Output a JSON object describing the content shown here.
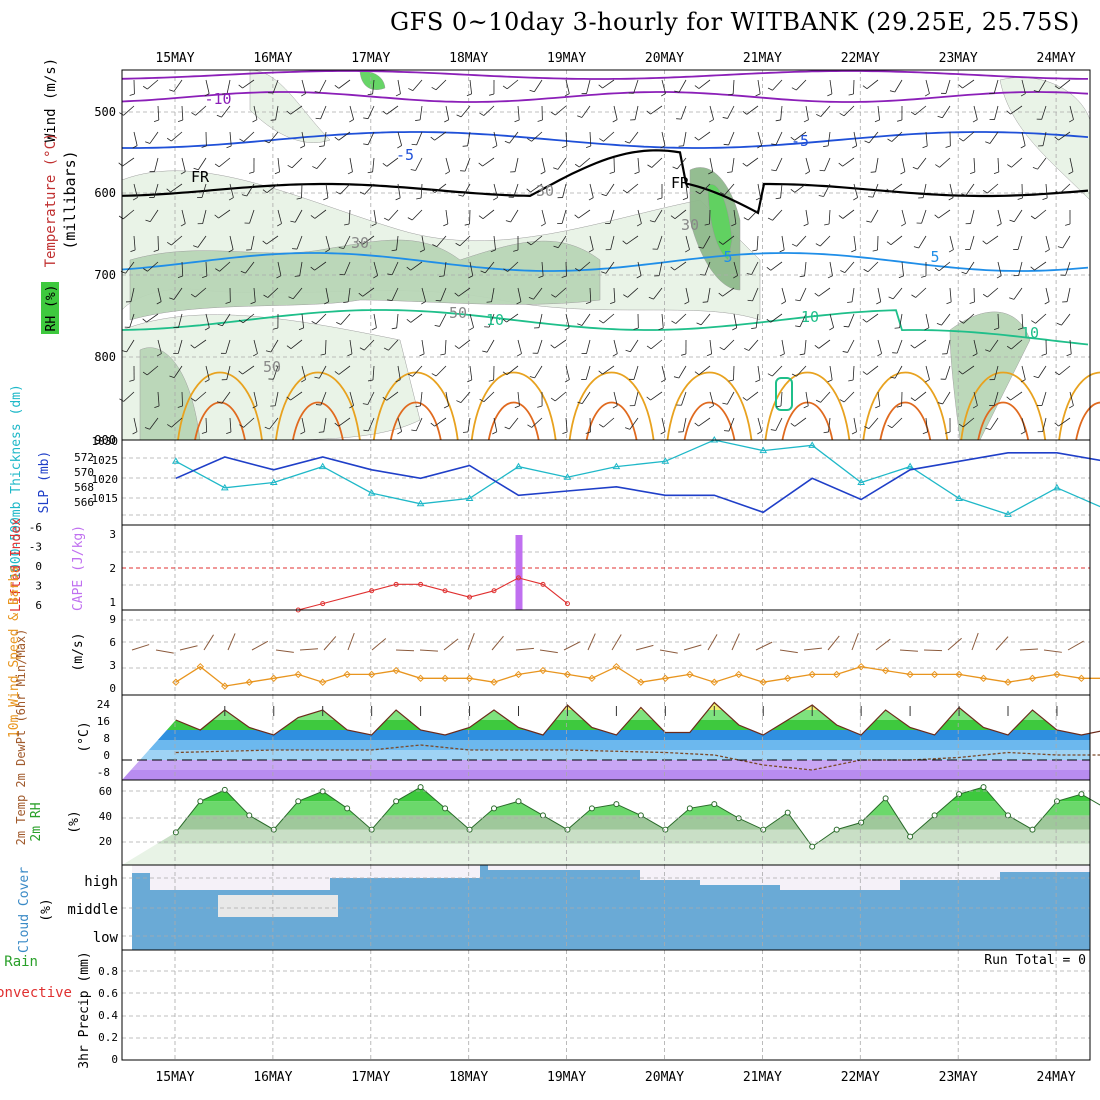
{
  "title": "GFS 0~10day 3-hourly for WITBANK (29.25E, 25.75S)",
  "days": [
    "15MAY",
    "16MAY",
    "17MAY",
    "18MAY",
    "19MAY",
    "20MAY",
    "21MAY",
    "22MAY",
    "23MAY",
    "24MAY"
  ],
  "colors": {
    "rh1": "#e8f3e6",
    "rh2": "#b9d6b7",
    "rh3": "#8fba8c",
    "rh4": "#5fd35f",
    "temp_m10": "#8b1fb8",
    "temp_m5": "#1f50d8",
    "temp_fr": "#000000",
    "temp_5": "#1f8ee8",
    "temp_10": "#1fbf8a",
    "temp_15": "#e8a21f",
    "temp_20": "#e06a1f",
    "thickness": "#1fb8c8",
    "slp": "#1f3fc8",
    "cape": "#c070f0",
    "li": "#e03030",
    "wind_speed": "#e8951f",
    "barb": "#8b5a3c",
    "cloud": "#6aaad6",
    "clear": "#f5f1f8"
  },
  "panels": {
    "upper": {
      "ylabel_wind": "Wind (m/s)",
      "ylabel_temp": "Temperature (°C)",
      "ylabel_rh": "RH (%)",
      "ylabel_mb": "(millibars)",
      "yticks": [
        "500",
        "600",
        "700",
        "800",
        "900"
      ],
      "contour_labels": [
        "-10",
        "-5",
        "-5",
        "FR",
        "FR",
        "5",
        "5",
        "10",
        "10",
        "10",
        "30",
        "30",
        "50",
        "50",
        "30"
      ]
    },
    "thick": {
      "ylabel_left": "1000-500mb Thickness (dm)",
      "ylabel_right": "SLP (mb)",
      "yticks_left": [
        "572",
        "570",
        "568",
        "566"
      ],
      "yticks_right": [
        "1030",
        "1025",
        "1020",
        "1015"
      ]
    },
    "cape": {
      "ylabel_left": "Lifted Index",
      "ylabel_right": "CAPE (J/kg)",
      "yticks_left": [
        "-6",
        "-3",
        "0",
        "3",
        "6"
      ],
      "yticks_right": [
        "3",
        "2",
        "1"
      ]
    },
    "wind10": {
      "ylabel": "10m Wind Speed & Barbs",
      "ylabel_unit": "(m/s)",
      "yticks": [
        "9",
        "6",
        "3",
        "0"
      ]
    },
    "temp2m": {
      "ylabel": "2m Temp 2m DewPt (6hr Min/Max)",
      "ylabel_unit": "(°C)",
      "yticks": [
        "24",
        "16",
        "8",
        "0",
        "-8"
      ]
    },
    "rh2m": {
      "ylabel": "2m RH",
      "ylabel_unit": "(%)",
      "yticks": [
        "60",
        "40",
        "20"
      ]
    },
    "cloud": {
      "ylabel": "Cloud Cover",
      "ylabel_unit": "(%)",
      "levels": [
        "high",
        "middle",
        "low"
      ]
    },
    "precip": {
      "ylabel_left1": "Total / Rain",
      "ylabel_left2": "Convective",
      "ylabel": "3hr Precip (mm)",
      "yticks": [
        "0.8",
        "0.6",
        "0.4",
        "0.2",
        "0"
      ],
      "run_total": "Run Total = 0"
    }
  },
  "chart_data": [
    {
      "type": "line",
      "name": "1000-500mb Thickness",
      "x": [
        0,
        0.5,
        1,
        1.5,
        2,
        2.5,
        3,
        3.5,
        4,
        4.5,
        5,
        5.5,
        6,
        6.5,
        7,
        7.5,
        8,
        8.5,
        9,
        9.5
      ],
      "values": [
        571.0,
        568.5,
        569.0,
        570.5,
        568.0,
        567.0,
        567.5,
        570.5,
        569.5,
        570.5,
        571.0,
        573.0,
        572.0,
        572.5,
        569.0,
        570.5,
        567.5,
        566.0,
        568.5,
        566.5
      ],
      "ylim": [
        565,
        573
      ]
    },
    {
      "type": "line",
      "name": "SLP",
      "x": [
        0,
        0.5,
        1,
        1.5,
        2,
        2.5,
        3,
        3.5,
        4,
        4.5,
        5,
        5.5,
        6,
        6.5,
        7,
        7.5,
        8,
        8.5,
        9,
        9.5
      ],
      "values": [
        1021,
        1026,
        1023,
        1026,
        1023,
        1021,
        1024,
        1017,
        1018,
        1019,
        1017,
        1017,
        1013,
        1021,
        1016,
        1023,
        1025,
        1027,
        1027,
        1025
      ],
      "ylim": [
        1010,
        1030
      ]
    },
    {
      "type": "bar",
      "name": "CAPE",
      "x": [
        3.5
      ],
      "values": [
        3
      ],
      "ylim": [
        1,
        3
      ]
    },
    {
      "type": "line",
      "name": "Lifted Index",
      "x": [
        1.25,
        1.5,
        2.0,
        2.25,
        2.5,
        2.75,
        3.0,
        3.25,
        3.5,
        3.75,
        4.0
      ],
      "values": [
        6,
        5,
        3,
        2,
        2,
        3,
        4,
        3,
        1,
        2,
        5
      ],
      "ylim": [
        6,
        -6
      ]
    },
    {
      "type": "line",
      "name": "10m Wind Speed",
      "x": [
        0,
        0.25,
        0.5,
        0.75,
        1,
        1.25,
        1.5,
        1.75,
        2,
        2.25,
        2.5,
        2.75,
        3,
        3.25,
        3.5,
        3.75,
        4,
        4.25,
        4.5,
        4.75,
        5,
        5.25,
        5.5,
        5.75,
        6,
        6.25,
        6.5,
        6.75,
        7,
        7.25,
        7.5,
        7.75,
        8,
        8.25,
        8.5,
        8.75,
        9,
        9.25,
        9.5
      ],
      "values": [
        1,
        3,
        0.5,
        1,
        1.5,
        2,
        1,
        2,
        2,
        2.5,
        1.5,
        1.5,
        1.5,
        1,
        2,
        2.5,
        2,
        1.5,
        3,
        1,
        1.5,
        2,
        1,
        2,
        1,
        1.5,
        2,
        2,
        3,
        2.5,
        2,
        2,
        2,
        1.5,
        1,
        1.5,
        2,
        1.5,
        1.5
      ],
      "ylim": [
        0,
        9
      ]
    },
    {
      "type": "area",
      "name": "2m Temp",
      "x": [
        0,
        0.25,
        0.5,
        0.75,
        1,
        1.25,
        1.5,
        1.75,
        2,
        2.25,
        2.5,
        2.75,
        3,
        3.25,
        3.5,
        3.75,
        4,
        4.25,
        4.5,
        4.75,
        5,
        5.25,
        5.5,
        5.75,
        6,
        6.25,
        6.5,
        6.75,
        7,
        7.25,
        7.5,
        7.75,
        8,
        8.25,
        8.5,
        8.75,
        9,
        9.25,
        9.5
      ],
      "values": [
        16,
        12,
        20,
        13,
        10,
        17,
        20,
        12,
        10,
        20,
        12,
        10,
        13,
        20,
        13,
        10,
        22,
        13,
        10,
        21,
        11,
        11,
        23,
        14,
        10,
        16,
        22,
        14,
        10,
        20,
        13,
        10,
        21,
        13,
        10,
        20,
        12,
        10,
        12
      ],
      "ylim": [
        -8,
        26
      ]
    },
    {
      "type": "line",
      "name": "2m DewPt",
      "x": [
        0,
        1,
        2,
        2.5,
        3,
        4,
        5,
        5.5,
        6,
        6.5,
        7,
        7.5,
        8,
        8.5,
        9,
        9.5
      ],
      "values": [
        3,
        4,
        4,
        6,
        4,
        4,
        3,
        2,
        -2,
        -4,
        0,
        0,
        1,
        3,
        2,
        2
      ],
      "ylim": [
        -8,
        26
      ]
    },
    {
      "type": "area",
      "name": "2m RH",
      "x": [
        0,
        0.25,
        0.5,
        0.75,
        1,
        1.25,
        1.5,
        1.75,
        2,
        2.25,
        2.5,
        2.75,
        3,
        3.25,
        3.5,
        3.75,
        4,
        4.25,
        4.5,
        4.75,
        5,
        5.25,
        5.5,
        5.75,
        6,
        6.25,
        6.5,
        6.75,
        7,
        7.25,
        7.5,
        7.75,
        8,
        8.25,
        8.5,
        8.75,
        9,
        9.25,
        9.5
      ],
      "values": [
        28,
        50,
        58,
        40,
        30,
        50,
        57,
        45,
        30,
        50,
        60,
        45,
        30,
        45,
        50,
        40,
        30,
        45,
        48,
        40,
        30,
        45,
        48,
        38,
        30,
        42,
        18,
        30,
        35,
        52,
        25,
        40,
        55,
        60,
        40,
        30,
        50,
        55,
        45
      ],
      "ylim": [
        5,
        65
      ]
    },
    {
      "type": "line",
      "name": "3hr Precip",
      "x": [
        0,
        9.5
      ],
      "values": [
        0,
        0
      ],
      "ylim": [
        0,
        0.9
      ]
    }
  ]
}
